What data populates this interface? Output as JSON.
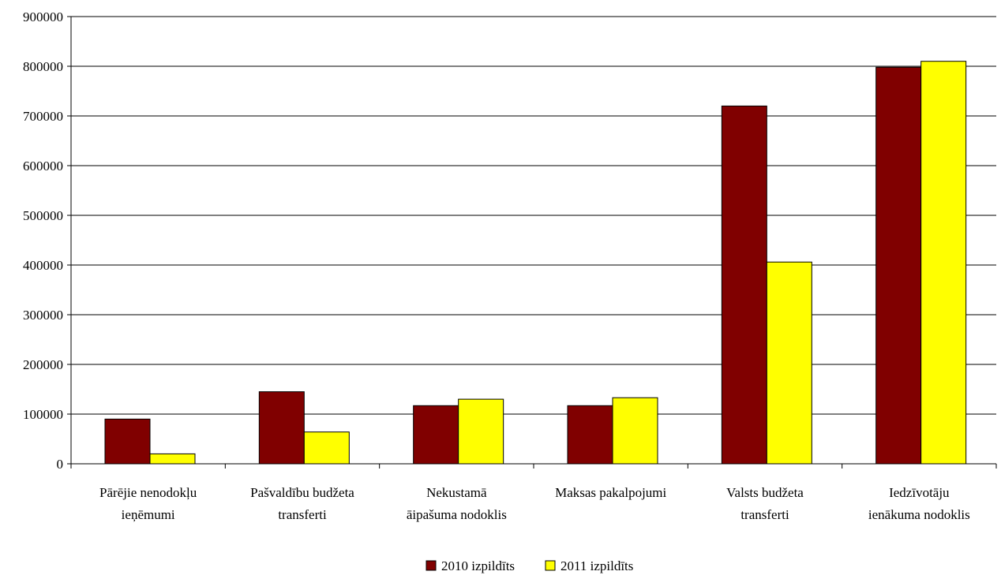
{
  "chart_data": {
    "type": "bar",
    "categories": [
      [
        "Pārējie nenodokļu",
        "ieņēmumi"
      ],
      [
        "Pašvaldību budžeta",
        "transferti"
      ],
      [
        "Nekustamā",
        "āipašuma nodoklis"
      ],
      [
        "Maksas pakalpojumi"
      ],
      [
        "Valsts budžeta",
        "transferti"
      ],
      [
        "Iedzīvotāju",
        "ienākuma nodoklis"
      ]
    ],
    "series": [
      {
        "name": "2010 izpildīts",
        "color": "#800000",
        "values": [
          90000,
          145000,
          117000,
          117000,
          720000,
          798000
        ]
      },
      {
        "name": "2011 izpildīts",
        "color": "#ffff00",
        "values": [
          20000,
          64000,
          130000,
          133000,
          406000,
          810000
        ]
      }
    ],
    "ylim": [
      0,
      900000
    ],
    "yticks": [
      "0",
      "100000",
      "200000",
      "300000",
      "400000",
      "500000",
      "600000",
      "700000",
      "800000",
      "900000"
    ],
    "grid": true,
    "legend_position": "bottom"
  }
}
